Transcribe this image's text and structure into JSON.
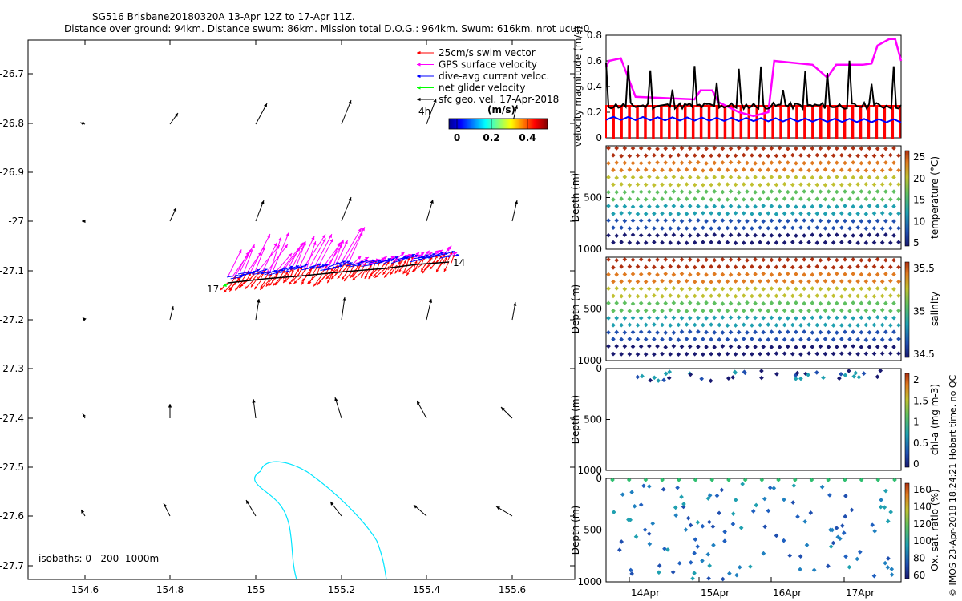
{
  "header": {
    "title_line1": "SG516 Brisbane20180320A 13-Apr 12Z to 17-Apr 11Z.",
    "title_line2": "Distance over ground: 94km. Distance swum: 86km. Mission total D.O.G.: 964km. Swum: 616km. nrot ucur:0"
  },
  "map": {
    "xticks": [
      "154.6",
      "154.8",
      "155",
      "155.2",
      "155.4",
      "155.6"
    ],
    "yticks": [
      "-26.7",
      "-26.8",
      "-26.9",
      "-27",
      "-27.1",
      "-27.2",
      "-27.3",
      "-27.4",
      "-27.5",
      "-27.6",
      "-27.7"
    ],
    "legend": [
      {
        "label": "25cm/s swim vector",
        "color": "#ff0000"
      },
      {
        "label": "GPS surface velocity",
        "color": "#ff00ff"
      },
      {
        "label": "dive-avg current veloc.",
        "color": "#0000ff"
      },
      {
        "label": "net glider velocity",
        "color": "#00ff00"
      },
      {
        "label": "sfc geo. vel. 17-Apr-2018",
        "color": "#000000"
      }
    ],
    "scale_label": "4h",
    "colorbar_title": "(m/s)",
    "colorbar_ticks": [
      "0",
      "0.2",
      "0.4"
    ],
    "start_label": "17",
    "end_label": "14",
    "isobath_text": "isobaths: 0   200  1000m"
  },
  "side": {
    "footer": "© IMOS 23-Apr-2018 18:24:21 Hobart time. no QC",
    "date_ticks": [
      "14Apr",
      "15Apr",
      "16Apr",
      "17Apr"
    ],
    "panels": [
      {
        "ylabel": "velocity magnitude (m/s)",
        "yticks": [
          "0",
          "0.2",
          "0.4",
          "0.6",
          "0.8"
        ]
      },
      {
        "ylabel": "Depth (m)",
        "yticks": [
          "500",
          "1000"
        ],
        "cbar_label": "temperature (°C)",
        "cbar_ticks": [
          "25",
          "20",
          "15",
          "10",
          "5"
        ]
      },
      {
        "ylabel": "Depth (m)",
        "yticks": [
          "500",
          "1000"
        ],
        "cbar_label": "salinity",
        "cbar_ticks": [
          "35.5",
          "35",
          "34.5"
        ]
      },
      {
        "ylabel": "Depth (m)",
        "yticks": [
          "0",
          "500",
          "1000"
        ],
        "cbar_label": "chl-a (mg m-3)",
        "cbar_ticks": [
          "2",
          "1.5",
          "1",
          "0.5",
          "0"
        ]
      },
      {
        "ylabel": "Depth (m)",
        "yticks": [
          "0",
          "500",
          "1000"
        ],
        "cbar_label": "Ox. sat. ratio (%)",
        "cbar_ticks": [
          "160",
          "140",
          "120",
          "100",
          "80",
          "60"
        ]
      }
    ]
  },
  "chart_data": [
    {
      "type": "scatter",
      "title": "SG516 Brisbane20180320A 13-Apr 12Z to 17-Apr 11Z.",
      "xlim": [
        154.45,
        155.72
      ],
      "ylim": [
        -27.73,
        -26.63
      ],
      "track": {
        "lon": [
          154.94,
          155.0,
          155.1,
          155.2,
          155.3,
          155.4,
          155.45
        ],
        "lat": [
          -27.12,
          -27.11,
          -27.1,
          -27.09,
          -27.08,
          -27.075,
          -27.07
        ]
      },
      "geo_vectors_sample": [
        {
          "lon": 154.6,
          "lat": -26.8,
          "u": 0.02,
          "v": 0.0
        },
        {
          "lon": 154.8,
          "lat": -26.8,
          "u": 0.1,
          "v": 0.15
        },
        {
          "lon": 155.0,
          "lat": -26.8,
          "u": 0.1,
          "v": 0.4
        }
      ]
    },
    {
      "type": "line",
      "ylabel": "velocity magnitude (m/s)",
      "ylim": [
        0,
        0.8
      ],
      "x": [
        "13-Apr 12Z",
        "14-Apr",
        "15-Apr",
        "16-Apr",
        "17-Apr",
        "17-Apr 11Z"
      ],
      "series": [
        {
          "name": "GPS surface velocity",
          "color": "#ff00ff",
          "values": [
            0.55,
            0.33,
            0.32,
            0.58,
            0.6,
            0.76
          ]
        },
        {
          "name": "dive-avg current veloc.",
          "color": "#0000ff",
          "values": [
            0.16,
            0.15,
            0.14,
            0.15,
            0.14,
            0.13
          ]
        },
        {
          "name": "net glider velocity",
          "color": "#000000",
          "values": [
            0.22,
            0.27,
            0.27,
            0.26,
            0.28,
            0.25
          ]
        },
        {
          "name": "25cm/s swim vector",
          "color": "#ff0000",
          "values": [
            0.25,
            0.25,
            0.25,
            0.25,
            0.25,
            0.25
          ]
        }
      ]
    },
    {
      "type": "scatter",
      "variable": "temperature",
      "ylim": [
        1000,
        0
      ],
      "clim": [
        5,
        28
      ],
      "dives": 36
    },
    {
      "type": "scatter",
      "variable": "salinity",
      "ylim": [
        1000,
        0
      ],
      "clim": [
        34.3,
        35.9
      ],
      "dives": 36
    },
    {
      "type": "scatter",
      "variable": "chl-a",
      "ylim": [
        1000,
        0
      ],
      "clim": [
        0,
        2
      ]
    },
    {
      "type": "scatter",
      "variable": "Ox. sat. ratio",
      "ylim": [
        1000,
        0
      ],
      "clim": [
        60,
        170
      ]
    }
  ]
}
